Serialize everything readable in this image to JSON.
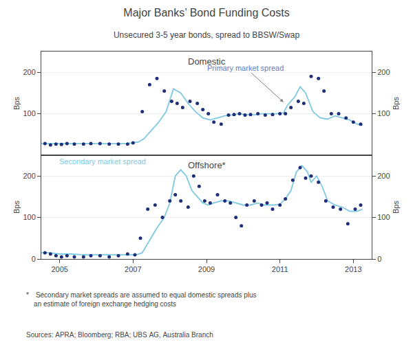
{
  "title": "Major Banks’ Bond Funding Costs",
  "subtitle": "Unsecured 3-5 year bonds, spread to BBSW/Swap",
  "annotations": [
    "* Secondary market spreads are assumed to equal domestic spreads plus\n    an estimate of foreign exchange hedging costs",
    "Sources: APRA; Bloomberg; RBA; UBS AG, Australia Branch"
  ],
  "chart_data": [
    {
      "type": "line",
      "title": "Domestic",
      "y_label": "Bps",
      "y2_label": "Bps",
      "xlim": [
        2004.5,
        2013.5
      ],
      "xticks": [
        2005,
        2007,
        2009,
        2011,
        2013
      ],
      "ylim": [
        0,
        250
      ],
      "yticks": [
        100,
        200
      ],
      "y2lim": [
        0,
        250
      ],
      "y2ticks": [
        100,
        200
      ],
      "grid": true,
      "tick_labels": "y",
      "annotations": [
        {
          "text": "Primary market spread",
          "color": "#5b7ec8"
        }
      ],
      "series": [
        {
          "type": "line",
          "color": "#7ec8e3",
          "x": [
            2004.5,
            2004.7,
            2005.0,
            2005.3,
            2005.6,
            2005.9,
            2006.2,
            2006.5,
            2006.8,
            2007.0,
            2007.15,
            2007.3,
            2007.5,
            2007.7,
            2007.9,
            2008.1,
            2008.3,
            2008.5,
            2008.7,
            2008.9,
            2009.1,
            2009.3,
            2009.5,
            2009.7,
            2009.9,
            2010.1,
            2010.3,
            2010.5,
            2010.7,
            2010.9,
            2011.1,
            2011.2,
            2011.4,
            2011.55,
            2011.7,
            2011.9,
            2012.1,
            2012.3,
            2012.5,
            2012.7,
            2012.9,
            2013.1,
            2013.25
          ],
          "values": [
            28,
            28,
            28,
            28,
            28,
            28,
            28,
            28,
            28,
            30,
            32,
            40,
            60,
            80,
            105,
            160,
            150,
            125,
            105,
            90,
            85,
            90,
            95,
            97,
            100,
            98,
            97,
            100,
            100,
            100,
            102,
            120,
            140,
            165,
            150,
            105,
            90,
            87,
            95,
            90,
            85,
            75,
            72
          ]
        },
        {
          "type": "scatter",
          "color": "#1f2f7a",
          "x": [
            2004.6,
            2004.75,
            2004.9,
            2005.05,
            2005.2,
            2005.4,
            2005.65,
            2005.85,
            2006.1,
            2006.35,
            2006.6,
            2006.85,
            2007.0,
            2007.25,
            2007.45,
            2007.65,
            2007.85,
            2008.05,
            2008.2,
            2008.35,
            2008.55,
            2008.75,
            2008.9,
            2009.05,
            2009.2,
            2009.4,
            2009.6,
            2009.75,
            2009.9,
            2010.05,
            2010.2,
            2010.4,
            2010.6,
            2010.8,
            2011.0,
            2011.15,
            2011.3,
            2011.5,
            2011.65,
            2011.85,
            2012.05,
            2012.2,
            2012.4,
            2012.6,
            2012.8,
            2013.0,
            2013.2
          ],
          "values": [
            28,
            25,
            27,
            26,
            28,
            27,
            27,
            28,
            28,
            27,
            27,
            27,
            30,
            105,
            170,
            185,
            155,
            130,
            125,
            115,
            130,
            125,
            110,
            100,
            80,
            75,
            97,
            98,
            100,
            97,
            98,
            100,
            97,
            98,
            100,
            100,
            115,
            130,
            125,
            190,
            185,
            155,
            100,
            100,
            90,
            80,
            75
          ]
        }
      ]
    },
    {
      "type": "line",
      "title": "Offshore*",
      "y_label": "Bps",
      "y2_label": "Bps",
      "xlim": [
        2004.5,
        2013.5
      ],
      "xticks": [
        2005,
        2007,
        2009,
        2011,
        2013
      ],
      "ylim": [
        0,
        250
      ],
      "yticks": [
        0,
        100,
        200
      ],
      "y2lim": [
        0,
        250
      ],
      "y2ticks": [
        0,
        100,
        200
      ],
      "grid": true,
      "annotations": [
        {
          "text": "Secondary market spread",
          "color": "#7ec8e3"
        }
      ],
      "series": [
        {
          "type": "line",
          "color": "#7ec8e3",
          "x": [
            2004.5,
            2004.7,
            2005.0,
            2005.3,
            2005.6,
            2005.9,
            2006.2,
            2006.5,
            2006.8,
            2007.0,
            2007.1,
            2007.25,
            2007.45,
            2007.65,
            2007.85,
            2008.0,
            2008.15,
            2008.3,
            2008.45,
            2008.6,
            2008.75,
            2008.9,
            2009.05,
            2009.2,
            2009.4,
            2009.6,
            2009.8,
            2010.0,
            2010.2,
            2010.4,
            2010.55,
            2010.7,
            2010.85,
            2011.0,
            2011.15,
            2011.3,
            2011.45,
            2011.6,
            2011.75,
            2011.85,
            2012.0,
            2012.15,
            2012.3,
            2012.5,
            2012.7,
            2012.9,
            2013.1,
            2013.25
          ],
          "values": [
            15,
            15,
            12,
            12,
            10,
            10,
            10,
            10,
            10,
            10,
            10,
            15,
            45,
            75,
            100,
            135,
            200,
            215,
            200,
            165,
            150,
            135,
            130,
            135,
            140,
            140,
            135,
            130,
            130,
            135,
            130,
            130,
            130,
            132,
            145,
            165,
            210,
            225,
            210,
            185,
            200,
            175,
            140,
            130,
            125,
            115,
            115,
            120
          ]
        },
        {
          "type": "scatter",
          "color": "#1f2f7a",
          "x": [
            2004.6,
            2004.75,
            2004.9,
            2005.05,
            2005.2,
            2005.4,
            2005.65,
            2005.85,
            2006.1,
            2006.35,
            2006.6,
            2006.85,
            2007.05,
            2007.2,
            2007.4,
            2007.6,
            2007.8,
            2008.0,
            2008.15,
            2008.3,
            2008.5,
            2008.65,
            2008.8,
            2008.95,
            2009.1,
            2009.3,
            2009.5,
            2009.65,
            2009.8,
            2009.95,
            2010.1,
            2010.3,
            2010.5,
            2010.65,
            2010.8,
            2011.0,
            2011.15,
            2011.35,
            2011.55,
            2011.7,
            2011.85,
            2012.05,
            2012.25,
            2012.45,
            2012.65,
            2012.85,
            2013.05,
            2013.2
          ],
          "values": [
            15,
            12,
            8,
            5,
            8,
            5,
            5,
            8,
            8,
            5,
            8,
            12,
            10,
            50,
            120,
            130,
            100,
            140,
            155,
            140,
            125,
            200,
            175,
            140,
            135,
            155,
            140,
            135,
            100,
            80,
            130,
            140,
            130,
            135,
            120,
            130,
            145,
            190,
            220,
            195,
            200,
            185,
            140,
            125,
            120,
            85,
            120,
            130
          ]
        }
      ]
    }
  ]
}
